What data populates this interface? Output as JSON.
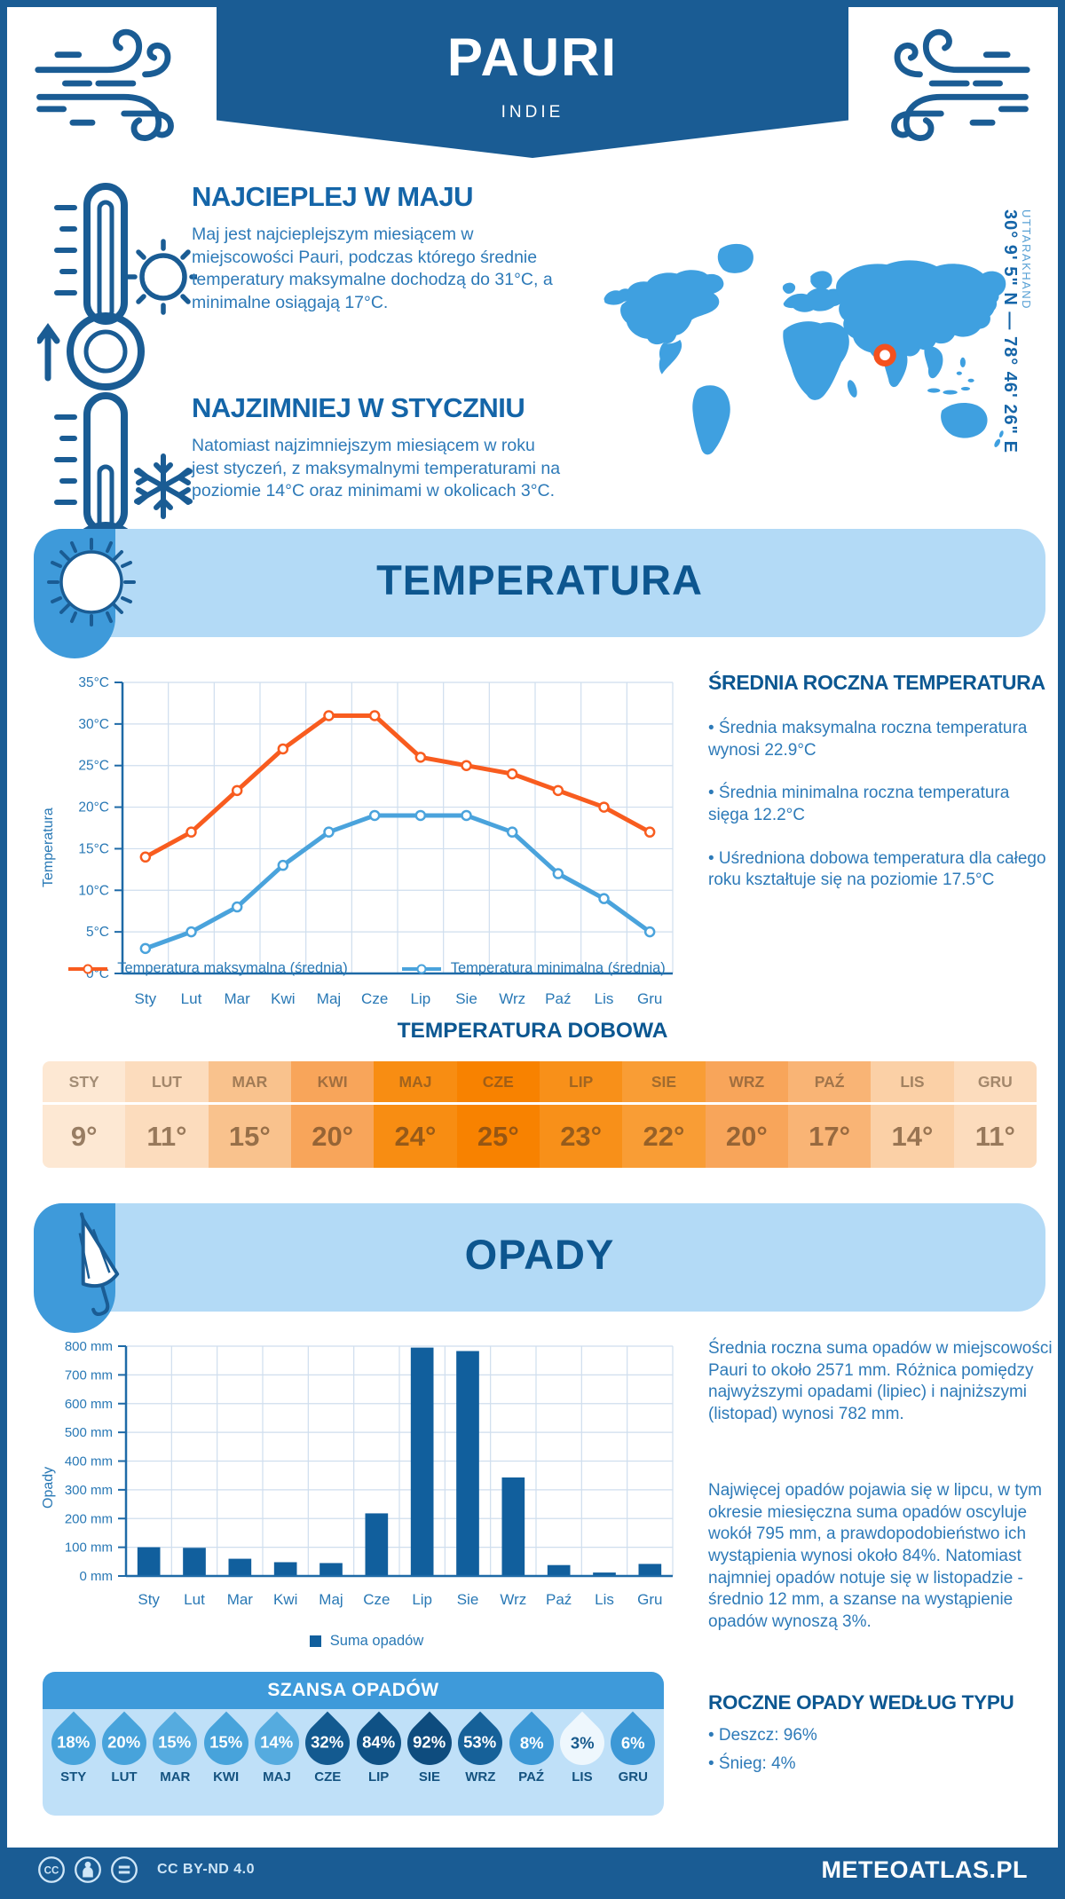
{
  "header": {
    "title": "PAURI",
    "subtitle": "INDIE"
  },
  "highlights": {
    "warmest": {
      "title": "NAJCIEPLEJ W MAJU",
      "text": "Maj jest najcieplejszym miesiącem w miejscowości Pauri, podczas którego średnie temperatury maksymalne dochodzą do 31°C, a minimalne osiągają 17°C."
    },
    "coldest": {
      "title": "NAJZIMNIEJ W STYCZNIU",
      "text": "Natomiast najzimniejszym miesiącem w roku jest styczeń, z maksymalnymi temperaturami na poziomie 14°C oraz minimami w okolicach 3°C."
    }
  },
  "map": {
    "coordinates": "30° 9' 5\" N — 78° 46' 26\" E",
    "region": "UTTARAKHAND"
  },
  "temperature": {
    "banner": "TEMPERATURA",
    "annual": {
      "title": "ŚREDNIA ROCZNA TEMPERATURA",
      "bullets": [
        "• Średnia maksymalna roczna temperatura wynosi 22.9°C",
        "• Średnia minimalna roczna temperatura sięga 12.2°C",
        "• Uśredniona dobowa temperatura dla całego roku kształtuje się na poziomie 17.5°C"
      ]
    },
    "daily": {
      "title": "TEMPERATURA DOBOWA",
      "cells": [
        {
          "month": "STY",
          "value": "9°",
          "color": "#fde8d3"
        },
        {
          "month": "LUT",
          "value": "11°",
          "color": "#fcdcbd"
        },
        {
          "month": "MAR",
          "value": "15°",
          "color": "#f9c28d"
        },
        {
          "month": "KWI",
          "value": "20°",
          "color": "#f8a55a"
        },
        {
          "month": "MAJ",
          "value": "24°",
          "color": "#f88d12"
        },
        {
          "month": "CZE",
          "value": "25°",
          "color": "#f88200"
        },
        {
          "month": "LIP",
          "value": "23°",
          "color": "#f89019"
        },
        {
          "month": "SIE",
          "value": "22°",
          "color": "#f99d35"
        },
        {
          "month": "WRZ",
          "value": "20°",
          "color": "#f8a55a"
        },
        {
          "month": "PAŹ",
          "value": "17°",
          "color": "#f9b475"
        },
        {
          "month": "LIS",
          "value": "14°",
          "color": "#fbd0a6"
        },
        {
          "month": "GRU",
          "value": "11°",
          "color": "#fcdcbd"
        }
      ]
    }
  },
  "precipitation": {
    "banner": "OPADY",
    "paragraphs": [
      "Średnia roczna suma opadów w miejscowości Pauri to około 2571 mm. Różnica pomiędzy najwyższymi opadami (lipiec) i najniższymi (listopad) wynosi 782 mm.",
      "Najwięcej opadów pojawia się w lipcu, w tym okresie miesięczna suma opadów oscyluje wokół 795 mm, a prawdopodobieństwo ich wystąpienia wynosi około 84%. Natomiast najmniej opadów notuje się w listopadzie - średnio 12 mm, a szanse na wystąpienie opadów wynoszą 3%."
    ],
    "types": {
      "title": "ROCZNE OPADY WEDŁUG TYPU",
      "bullets": [
        "• Deszcz: 96%",
        "• Śnieg: 4%"
      ]
    },
    "chance": {
      "title": "SZANSA OPADÓW",
      "drops": [
        {
          "month": "STY",
          "percent": "18%",
          "color": "#47a3db",
          "text": "#ffffff"
        },
        {
          "month": "LUT",
          "percent": "20%",
          "color": "#47a3db",
          "text": "#ffffff"
        },
        {
          "month": "MAR",
          "percent": "15%",
          "color": "#55abdf",
          "text": "#ffffff"
        },
        {
          "month": "KWI",
          "percent": "15%",
          "color": "#47a3db",
          "text": "#ffffff"
        },
        {
          "month": "MAJ",
          "percent": "14%",
          "color": "#55abdf",
          "text": "#ffffff"
        },
        {
          "month": "CZE",
          "percent": "32%",
          "color": "#135a90",
          "text": "#ffffff"
        },
        {
          "month": "LIP",
          "percent": "84%",
          "color": "#0f5185",
          "text": "#ffffff"
        },
        {
          "month": "SIE",
          "percent": "92%",
          "color": "#0e4c7e",
          "text": "#ffffff"
        },
        {
          "month": "WRZ",
          "percent": "53%",
          "color": "#166199",
          "text": "#ffffff"
        },
        {
          "month": "PAŹ",
          "percent": "8%",
          "color": "#3c98d6",
          "text": "#ffffff"
        },
        {
          "month": "LIS",
          "percent": "3%",
          "color": "#eef7fd",
          "text": "#1a5c8e"
        },
        {
          "month": "GRU",
          "percent": "6%",
          "color": "#3c98d6",
          "text": "#ffffff"
        }
      ]
    }
  },
  "footer": {
    "license": "CC BY-ND 4.0",
    "site": "METEOATLAS.PL"
  },
  "chart_data": [
    {
      "type": "line",
      "title": "",
      "categories": [
        "Sty",
        "Lut",
        "Mar",
        "Kwi",
        "Maj",
        "Cze",
        "Lip",
        "Sie",
        "Wrz",
        "Paź",
        "Lis",
        "Gru"
      ],
      "series": [
        {
          "name": "Temperatura maksymalna (średnia)",
          "color": "#f85c1f",
          "values": [
            14,
            17,
            22,
            27,
            31,
            31,
            26,
            25,
            24,
            22,
            20,
            17
          ]
        },
        {
          "name": "Temperatura minimalna (średnia)",
          "color": "#4aa3dc",
          "values": [
            3,
            5,
            8,
            13,
            17,
            19,
            19,
            19,
            17,
            12,
            9,
            5
          ]
        }
      ],
      "xlabel": "",
      "ylabel": "Temperatura",
      "ylim": [
        0,
        35
      ],
      "ytick_step": 5,
      "ytick_suffix": "°C",
      "grid": true,
      "legend_position": "bottom"
    },
    {
      "type": "bar",
      "title": "",
      "categories": [
        "Sty",
        "Lut",
        "Mar",
        "Kwi",
        "Maj",
        "Cze",
        "Lip",
        "Sie",
        "Wrz",
        "Paź",
        "Lis",
        "Gru"
      ],
      "series": [
        {
          "name": "Suma opadów",
          "color": "#115f9d",
          "values": [
            100,
            98,
            60,
            48,
            45,
            218,
            795,
            783,
            343,
            38,
            12,
            42
          ]
        }
      ],
      "xlabel": "",
      "ylabel": "Opady",
      "ylim": [
        0,
        800
      ],
      "ytick_step": 100,
      "ytick_suffix": " mm",
      "grid": true,
      "legend_position": "bottom"
    }
  ]
}
